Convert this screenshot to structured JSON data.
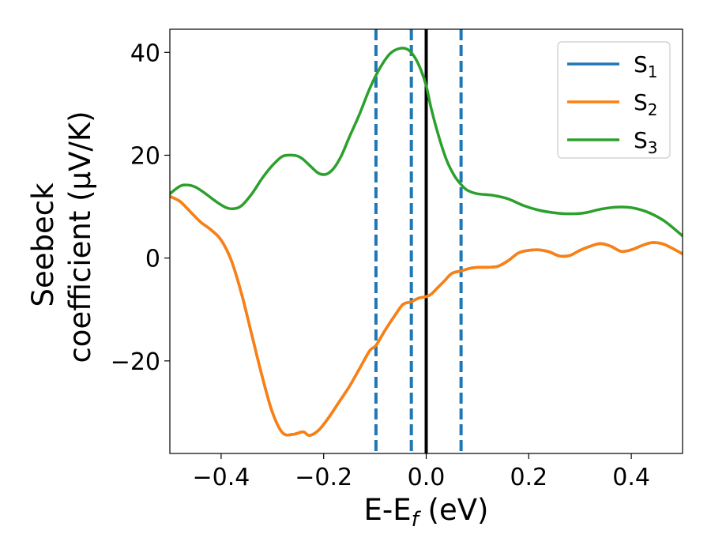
{
  "chart_data": {
    "type": "line",
    "xlabel": "E-E",
    "xlabel_sub": "f",
    "xlabel_unit": " (eV)",
    "ylabel_line1": "Seebeck",
    "ylabel_line2": "coefficient  (μV/K)",
    "xlim": [
      -0.5,
      0.5
    ],
    "ylim": [
      -38,
      44.5
    ],
    "xticks": [
      -0.4,
      -0.2,
      0.0,
      0.2,
      0.4
    ],
    "xtick_labels": [
      "−0.4",
      "−0.2",
      "0.0",
      "0.2",
      "0.4"
    ],
    "yticks": [
      -20,
      0,
      20,
      40
    ],
    "ytick_labels": [
      "−20",
      "0",
      "20",
      "40"
    ],
    "grid": false,
    "legend_position": "top-right",
    "vlines": [
      {
        "x": -0.098,
        "style": "dashed",
        "color": "#1f77b4"
      },
      {
        "x": -0.029,
        "style": "dashed",
        "color": "#1f77b4"
      },
      {
        "x": 0.0,
        "style": "solid",
        "color": "#000000"
      },
      {
        "x": 0.068,
        "style": "dashed",
        "color": "#1f77b4"
      }
    ],
    "series": [
      {
        "name": "S",
        "sub": "1",
        "color": "#1f77b4",
        "x": [
          -0.5,
          -0.48,
          -0.46,
          -0.44,
          -0.42,
          -0.4,
          -0.38,
          -0.36,
          -0.34,
          -0.32,
          -0.3,
          -0.28,
          -0.26,
          -0.24,
          -0.228,
          -0.21,
          -0.19,
          -0.17,
          -0.15,
          -0.13,
          -0.11,
          -0.098,
          -0.08,
          -0.06,
          -0.045,
          -0.029,
          -0.015,
          0.0,
          0.01,
          0.02,
          0.035,
          0.05,
          0.068,
          0.085,
          0.1,
          0.12,
          0.14,
          0.16,
          0.18,
          0.2,
          0.22,
          0.24,
          0.26,
          0.28,
          0.3,
          0.32,
          0.34,
          0.36,
          0.38,
          0.4,
          0.42,
          0.44,
          0.46,
          0.48,
          0.5
        ],
        "y": [
          12.0,
          11.0,
          9.0,
          7.0,
          5.5,
          3.5,
          -0.5,
          -7.0,
          -15.0,
          -23.0,
          -30.0,
          -34.0,
          -34.3,
          -33.8,
          -34.5,
          -33.5,
          -31.0,
          -28.0,
          -25.0,
          -21.5,
          -18.0,
          -17.0,
          -14.0,
          -11.0,
          -9.0,
          -8.5,
          -7.8,
          -7.5,
          -7.0,
          -6.0,
          -4.5,
          -3.0,
          -2.5,
          -2.0,
          -1.8,
          -1.8,
          -1.6,
          -0.5,
          1.0,
          1.5,
          1.6,
          1.2,
          0.4,
          0.5,
          1.5,
          2.3,
          2.8,
          2.3,
          1.3,
          1.6,
          2.4,
          3.0,
          2.8,
          1.9,
          0.8
        ]
      },
      {
        "name": "S",
        "sub": "2",
        "color": "#ff7f0e",
        "x": [
          -0.5,
          -0.48,
          -0.46,
          -0.44,
          -0.42,
          -0.4,
          -0.38,
          -0.36,
          -0.34,
          -0.32,
          -0.3,
          -0.28,
          -0.26,
          -0.24,
          -0.228,
          -0.21,
          -0.19,
          -0.17,
          -0.15,
          -0.13,
          -0.11,
          -0.098,
          -0.08,
          -0.06,
          -0.045,
          -0.029,
          -0.015,
          0.0,
          0.01,
          0.02,
          0.035,
          0.05,
          0.068,
          0.085,
          0.1,
          0.12,
          0.14,
          0.16,
          0.18,
          0.2,
          0.22,
          0.24,
          0.26,
          0.28,
          0.3,
          0.32,
          0.34,
          0.36,
          0.38,
          0.4,
          0.42,
          0.44,
          0.46,
          0.48,
          0.5
        ],
        "y": [
          12.0,
          11.0,
          9.0,
          7.0,
          5.5,
          3.5,
          -0.5,
          -7.0,
          -15.0,
          -23.0,
          -30.0,
          -34.0,
          -34.3,
          -33.8,
          -34.5,
          -33.5,
          -31.0,
          -28.0,
          -25.0,
          -21.5,
          -18.0,
          -17.0,
          -14.0,
          -11.0,
          -9.0,
          -8.5,
          -7.8,
          -7.5,
          -7.0,
          -6.0,
          -4.5,
          -3.0,
          -2.5,
          -2.0,
          -1.8,
          -1.8,
          -1.6,
          -0.5,
          1.0,
          1.5,
          1.6,
          1.2,
          0.4,
          0.5,
          1.5,
          2.3,
          2.8,
          2.3,
          1.3,
          1.6,
          2.4,
          3.0,
          2.8,
          1.9,
          0.8
        ]
      },
      {
        "name": "S",
        "sub": "3",
        "color": "#2ca02c",
        "x": [
          -0.5,
          -0.48,
          -0.465,
          -0.45,
          -0.43,
          -0.41,
          -0.39,
          -0.375,
          -0.36,
          -0.34,
          -0.32,
          -0.3,
          -0.28,
          -0.26,
          -0.25,
          -0.24,
          -0.225,
          -0.21,
          -0.195,
          -0.18,
          -0.165,
          -0.15,
          -0.13,
          -0.11,
          -0.09,
          -0.07,
          -0.05,
          -0.035,
          -0.022,
          -0.01,
          0.0,
          0.01,
          0.025,
          0.04,
          0.055,
          0.068,
          0.08,
          0.1,
          0.13,
          0.16,
          0.19,
          0.22,
          0.25,
          0.28,
          0.31,
          0.34,
          0.37,
          0.4,
          0.43,
          0.46,
          0.48,
          0.5
        ],
        "y": [
          12.5,
          14.0,
          14.2,
          13.8,
          12.5,
          11.0,
          9.8,
          9.6,
          10.2,
          12.5,
          15.5,
          18.0,
          19.8,
          20.0,
          19.8,
          19.2,
          17.8,
          16.5,
          16.3,
          17.5,
          20.0,
          23.5,
          28.0,
          33.0,
          37.0,
          39.8,
          40.8,
          40.5,
          39.0,
          36.5,
          33.5,
          29.0,
          23.5,
          19.0,
          16.0,
          14.3,
          13.2,
          12.5,
          12.2,
          11.5,
          10.2,
          9.3,
          8.8,
          8.6,
          8.8,
          9.5,
          9.9,
          9.8,
          9.0,
          7.5,
          6.0,
          4.3
        ]
      }
    ]
  }
}
